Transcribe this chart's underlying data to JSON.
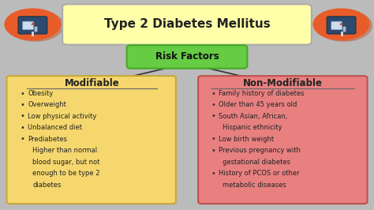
{
  "title": "Type 2 Diabetes Mellitus",
  "title_box_color": "#FFFFAA",
  "title_box_edge": "#AAAAAA",
  "risk_label": "Risk Factors",
  "risk_box_color": "#66CC44",
  "risk_box_edge": "#44AA22",
  "modifiable_title": "Modifiable",
  "modifiable_bg": "#F5D76E",
  "modifiable_edge": "#C8A83A",
  "modifiable_items": [
    "Obesity",
    "Overweight",
    "Low physical activity",
    "Unbalanced diet",
    "Prediabetes",
    "Higher than normal",
    "blood sugar, but not",
    "enough to be type 2",
    "diabetes"
  ],
  "modifiable_bullets": [
    true,
    true,
    true,
    true,
    true,
    false,
    false,
    false,
    false
  ],
  "modifiable_indent": [
    false,
    false,
    false,
    false,
    false,
    true,
    true,
    true,
    true
  ],
  "non_modifiable_title": "Non-Modifiable",
  "non_modifiable_bg": "#E88080",
  "non_modifiable_edge": "#C05050",
  "non_modifiable_items": [
    "Family history of diabetes",
    "Older than 45 years old",
    "South Asian, African,",
    "Hispanic ethnicity",
    "Low birth weight",
    "Previous pregnancy with",
    "gestational diabetes",
    "History of PCOS or other",
    "metabolic diseases"
  ],
  "non_modifiable_bullets": [
    true,
    true,
    true,
    false,
    true,
    true,
    false,
    true,
    false
  ],
  "non_modifiable_indent": [
    false,
    false,
    false,
    true,
    false,
    false,
    true,
    false,
    true
  ],
  "bg_color": "#BBBBBB",
  "circle_color": "#E85C2A",
  "icon_body_color": "#2C4A6E",
  "icon_screen_color": "#CCDDEE",
  "icon_drop_color": "#CC4422"
}
